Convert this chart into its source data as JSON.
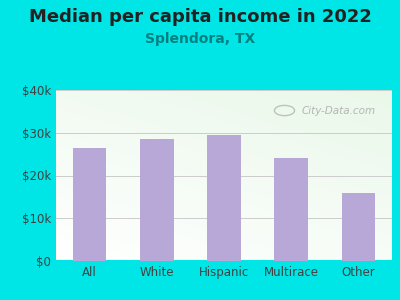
{
  "title": "Median per capita income in 2022",
  "subtitle": "Splendora, TX",
  "categories": [
    "All",
    "White",
    "Hispanic",
    "Multirace",
    "Other"
  ],
  "values": [
    26500,
    28500,
    29500,
    24000,
    16000
  ],
  "bar_color": "#b8a8d8",
  "title_fontsize": 13,
  "subtitle_fontsize": 10,
  "subtitle_color": "#008080",
  "tick_label_fontsize": 8.5,
  "tick_color": "#404040",
  "background_outer": "#00e5e5",
  "background_inner_top_right": "#d8edd8",
  "background_inner_bottom_left": "#f0fff0",
  "background_white": "#ffffff",
  "ylim": [
    0,
    40000
  ],
  "yticks": [
    0,
    10000,
    20000,
    30000,
    40000
  ],
  "ytick_labels": [
    "$0",
    "$10k",
    "$20k",
    "$30k",
    "$40k"
  ],
  "watermark": "City-Data.com",
  "watermark_color": "#aaaaaa",
  "grid_color": "#cccccc"
}
